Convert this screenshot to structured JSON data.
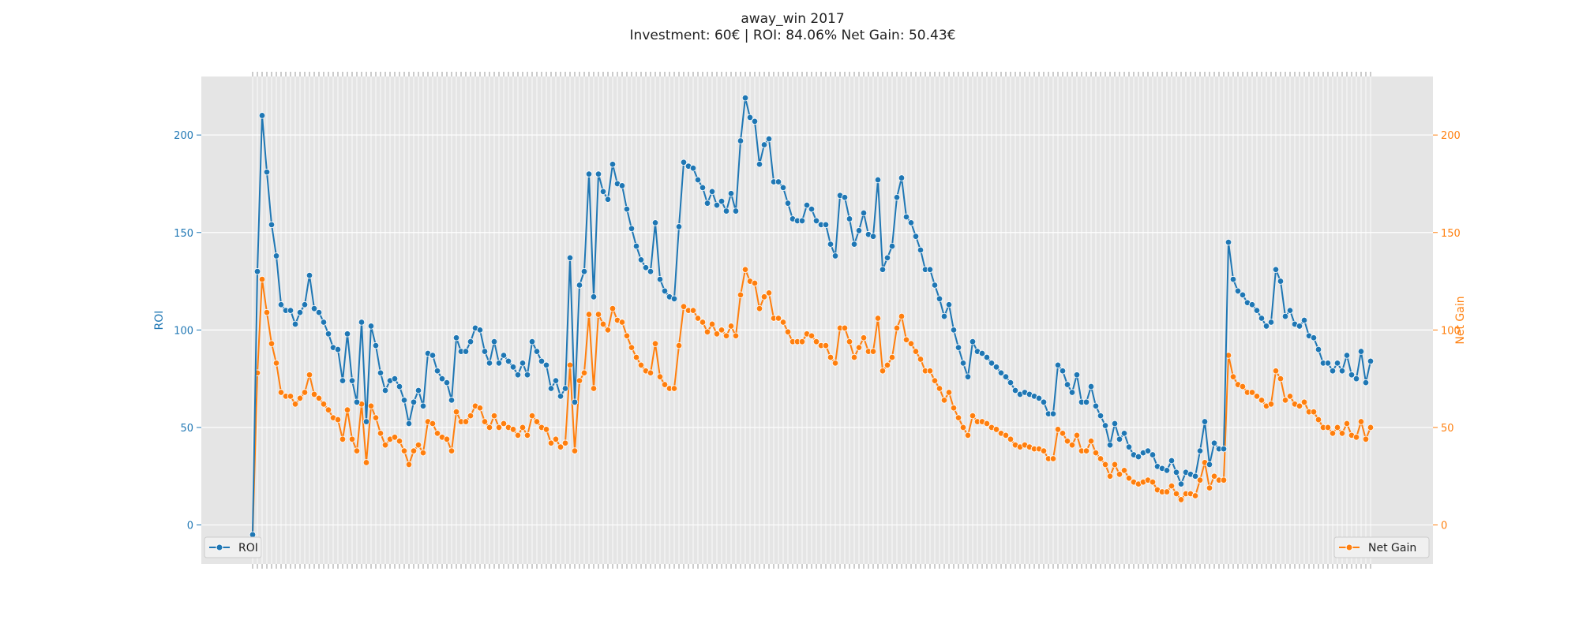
{
  "chart_data": {
    "type": "line",
    "title": "away_win 2017",
    "subtitle": "Investment: 60€ | ROI: 84.06% Net Gain: 50.43€",
    "ylabel_left": "ROI",
    "ylabel_right": "Net Gain",
    "ylim_left": [
      -20,
      230
    ],
    "ylim_right": [
      -20,
      230
    ],
    "left_ticks": [
      0,
      50,
      100,
      150,
      200
    ],
    "right_ticks": [
      0,
      50,
      100,
      150,
      200
    ],
    "grid": true,
    "x_axis": "rotated date tick labels (bottom) and rotated per-point labels (top); illegible",
    "series": [
      {
        "name": "ROI",
        "color": "#1f77b4",
        "legend": "bottom-left",
        "values": [
          -5,
          130,
          210,
          181,
          154,
          138,
          113,
          110,
          110,
          103,
          109,
          113,
          128,
          111,
          109,
          104,
          98,
          91,
          90,
          74,
          98,
          74,
          63,
          104,
          53,
          102,
          92,
          78,
          69,
          74,
          75,
          71,
          64,
          52,
          63,
          69,
          61,
          88,
          87,
          79,
          75,
          73,
          64,
          96,
          89,
          89,
          94,
          101,
          100,
          89,
          83,
          94,
          83,
          87,
          84,
          81,
          77,
          83,
          77,
          94,
          89,
          84,
          82,
          70,
          74,
          66,
          70,
          137,
          63,
          123,
          130,
          180,
          117,
          180,
          171,
          167,
          185,
          175,
          174,
          162,
          152,
          143,
          136,
          132,
          130,
          155,
          126,
          120,
          117,
          116,
          153,
          186,
          184,
          183,
          177,
          173,
          165,
          171,
          164,
          166,
          161,
          170,
          161,
          197,
          219,
          209,
          207,
          185,
          195,
          198,
          176,
          176,
          173,
          165,
          157,
          156,
          156,
          164,
          162,
          156,
          154,
          154,
          144,
          138,
          169,
          168,
          157,
          144,
          151,
          160,
          149,
          148,
          177,
          131,
          137,
          143,
          168,
          178,
          158,
          155,
          148,
          141,
          131,
          131,
          123,
          116,
          107,
          113,
          100,
          91,
          83,
          76,
          94,
          89,
          88,
          86,
          83,
          81,
          78,
          76,
          73,
          69,
          67,
          68,
          67,
          66,
          65,
          63,
          57,
          57,
          82,
          79,
          72,
          68,
          77,
          63,
          63,
          71,
          61,
          56,
          51,
          41,
          52,
          44,
          47,
          40,
          36,
          35,
          37,
          38,
          36,
          30,
          29,
          28,
          33,
          27,
          21,
          27,
          26,
          25,
          38,
          53,
          31,
          42,
          39,
          39,
          145,
          126,
          120,
          118,
          114,
          113,
          110,
          106,
          102,
          104,
          131,
          125,
          107,
          110,
          103,
          102,
          105,
          97,
          96,
          90,
          83,
          83,
          79,
          83,
          79,
          87,
          77,
          75,
          89,
          73,
          84
        ]
      },
      {
        "name": "Net Gain",
        "color": "#ff7f0e",
        "legend": "bottom-right",
        "values": [
          -5,
          78,
          126,
          109,
          93,
          83,
          68,
          66,
          66,
          62,
          65,
          68,
          77,
          67,
          65,
          62,
          59,
          55,
          54,
          44,
          59,
          44,
          38,
          62,
          32,
          61,
          55,
          47,
          41,
          44,
          45,
          43,
          38,
          31,
          38,
          41,
          37,
          53,
          52,
          47,
          45,
          44,
          38,
          58,
          53,
          53,
          56,
          61,
          60,
          53,
          50,
          56,
          50,
          52,
          50,
          49,
          46,
          50,
          46,
          56,
          53,
          50,
          49,
          42,
          44,
          40,
          42,
          82,
          38,
          74,
          78,
          108,
          70,
          108,
          103,
          100,
          111,
          105,
          104,
          97,
          91,
          86,
          82,
          79,
          78,
          93,
          76,
          72,
          70,
          70,
          92,
          112,
          110,
          110,
          106,
          104,
          99,
          103,
          98,
          100,
          97,
          102,
          97,
          118,
          131,
          125,
          124,
          111,
          117,
          119,
          106,
          106,
          104,
          99,
          94,
          94,
          94,
          98,
          97,
          94,
          92,
          92,
          86,
          83,
          101,
          101,
          94,
          86,
          91,
          96,
          89,
          89,
          106,
          79,
          82,
          86,
          101,
          107,
          95,
          93,
          89,
          85,
          79,
          79,
          74,
          70,
          64,
          68,
          60,
          55,
          50,
          46,
          56,
          53,
          53,
          52,
          50,
          49,
          47,
          46,
          44,
          41,
          40,
          41,
          40,
          39,
          39,
          38,
          34,
          34,
          49,
          47,
          43,
          41,
          46,
          38,
          38,
          43,
          37,
          34,
          31,
          25,
          31,
          26,
          28,
          24,
          22,
          21,
          22,
          23,
          22,
          18,
          17,
          17,
          20,
          16,
          13,
          16,
          16,
          15,
          23,
          32,
          19,
          25,
          23,
          23,
          87,
          76,
          72,
          71,
          68,
          68,
          66,
          64,
          61,
          62,
          79,
          75,
          64,
          66,
          62,
          61,
          63,
          58,
          58,
          54,
          50,
          50,
          47,
          50,
          47,
          52,
          46,
          45,
          53,
          44,
          50
        ]
      }
    ]
  }
}
